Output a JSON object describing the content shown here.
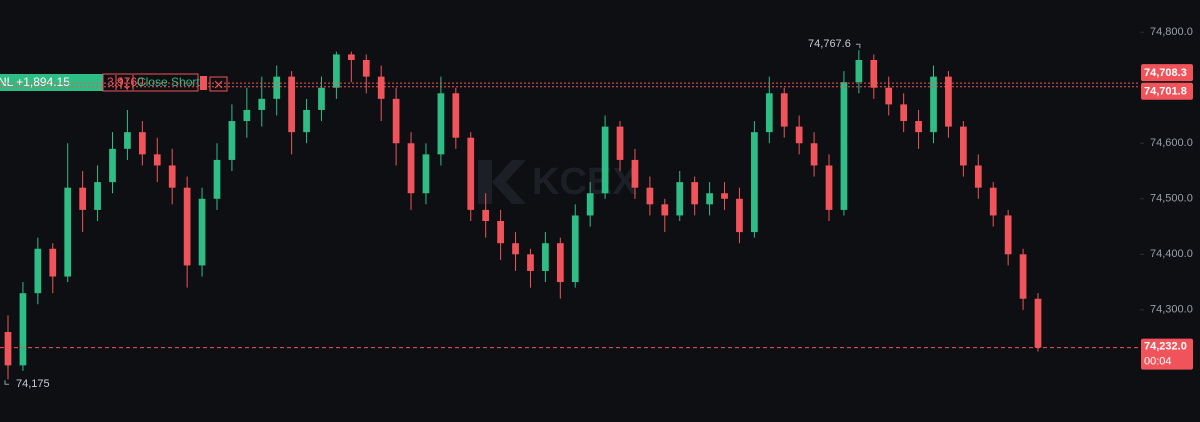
{
  "chart_data": {
    "type": "candlestick",
    "watermark": "KCEX",
    "up_color": "#2ebd85",
    "down_color": "#f0545a",
    "ylim": [
      74098,
      74858
    ],
    "yticks": [
      {
        "value": 74800,
        "label": "74,800.0"
      },
      {
        "value": 74700,
        "label": "74,700.0"
      },
      {
        "value": 74600,
        "label": "74,600.0"
      },
      {
        "value": 74500,
        "label": "74,500.0"
      },
      {
        "value": 74400,
        "label": "74,400.0"
      },
      {
        "value": 74300,
        "label": "74,300.0"
      }
    ],
    "candles": [
      [
        74260,
        74290,
        74175,
        74200
      ],
      [
        74200,
        74350,
        74190,
        74330
      ],
      [
        74330,
        74430,
        74310,
        74410
      ],
      [
        74410,
        74420,
        74330,
        74360
      ],
      [
        74360,
        74600,
        74350,
        74520
      ],
      [
        74520,
        74550,
        74440,
        74480
      ],
      [
        74480,
        74560,
        74460,
        74530
      ],
      [
        74530,
        74620,
        74510,
        74590
      ],
      [
        74590,
        74660,
        74570,
        74620
      ],
      [
        74620,
        74640,
        74560,
        74580
      ],
      [
        74580,
        74610,
        74530,
        74560
      ],
      [
        74560,
        74590,
        74490,
        74520
      ],
      [
        74520,
        74540,
        74340,
        74380
      ],
      [
        74380,
        74520,
        74360,
        74500
      ],
      [
        74500,
        74600,
        74480,
        74570
      ],
      [
        74570,
        74670,
        74550,
        74640
      ],
      [
        74640,
        74700,
        74610,
        74660
      ],
      [
        74660,
        74720,
        74630,
        74680
      ],
      [
        74680,
        74740,
        74650,
        74720
      ],
      [
        74720,
        74730,
        74580,
        74620
      ],
      [
        74620,
        74680,
        74600,
        74660
      ],
      [
        74660,
        74720,
        74640,
        74700
      ],
      [
        74700,
        74765,
        74680,
        74760
      ],
      [
        74760,
        74765,
        74710,
        74750
      ],
      [
        74750,
        74760,
        74690,
        74720
      ],
      [
        74720,
        74740,
        74640,
        74680
      ],
      [
        74680,
        74700,
        74560,
        74600
      ],
      [
        74600,
        74620,
        74480,
        74510
      ],
      [
        74510,
        74600,
        74490,
        74580
      ],
      [
        74580,
        74720,
        74560,
        74690
      ],
      [
        74690,
        74700,
        74590,
        74610
      ],
      [
        74610,
        74620,
        74460,
        74480
      ],
      [
        74480,
        74510,
        74430,
        74460
      ],
      [
        74460,
        74480,
        74390,
        74420
      ],
      [
        74420,
        74440,
        74370,
        74400
      ],
      [
        74400,
        74410,
        74340,
        74370
      ],
      [
        74370,
        74440,
        74350,
        74420
      ],
      [
        74420,
        74430,
        74320,
        74350
      ],
      [
        74350,
        74490,
        74340,
        74470
      ],
      [
        74470,
        74530,
        74450,
        74510
      ],
      [
        74510,
        74650,
        74500,
        74630
      ],
      [
        74630,
        74640,
        74550,
        74570
      ],
      [
        74570,
        74590,
        74500,
        74520
      ],
      [
        74520,
        74540,
        74470,
        74490
      ],
      [
        74490,
        74500,
        74440,
        74470
      ],
      [
        74470,
        74550,
        74460,
        74530
      ],
      [
        74530,
        74540,
        74470,
        74490
      ],
      [
        74490,
        74530,
        74470,
        74510
      ],
      [
        74510,
        74530,
        74480,
        74500
      ],
      [
        74500,
        74520,
        74420,
        74440
      ],
      [
        74440,
        74640,
        74430,
        74620
      ],
      [
        74620,
        74720,
        74600,
        74690
      ],
      [
        74690,
        74700,
        74610,
        74630
      ],
      [
        74630,
        74650,
        74580,
        74600
      ],
      [
        74600,
        74620,
        74540,
        74560
      ],
      [
        74560,
        74580,
        74460,
        74480
      ],
      [
        74480,
        74730,
        74470,
        74710
      ],
      [
        74710,
        74767.6,
        74690,
        74750
      ],
      [
        74750,
        74760,
        74680,
        74700
      ],
      [
        74700,
        74720,
        74650,
        74670
      ],
      [
        74670,
        74690,
        74620,
        74640
      ],
      [
        74640,
        74660,
        74590,
        74620
      ],
      [
        74620,
        74740,
        74600,
        74720
      ],
      [
        74720,
        74730,
        74610,
        74630
      ],
      [
        74630,
        74640,
        74540,
        74560
      ],
      [
        74560,
        74580,
        74500,
        74520
      ],
      [
        74520,
        74530,
        74450,
        74470
      ],
      [
        74470,
        74480,
        74380,
        74400
      ],
      [
        74400,
        74410,
        74300,
        74320
      ],
      [
        74320,
        74330,
        74225,
        74232
      ]
    ],
    "high_annotation": {
      "value": 74767.6,
      "label": "74,767.6"
    },
    "low_annotation": {
      "value": 74175,
      "label": "74,175"
    },
    "price_lines": [
      {
        "value": 74708.3,
        "label": "74,708.3"
      },
      {
        "value": 74701.8,
        "label": "74,701.8"
      }
    ],
    "current_price": {
      "value": 74232.0,
      "label": "74,232.0",
      "countdown": "00:04"
    },
    "position": {
      "pnl": "NL +1,894.15",
      "size": "3.9760",
      "action": "Close Short"
    }
  }
}
